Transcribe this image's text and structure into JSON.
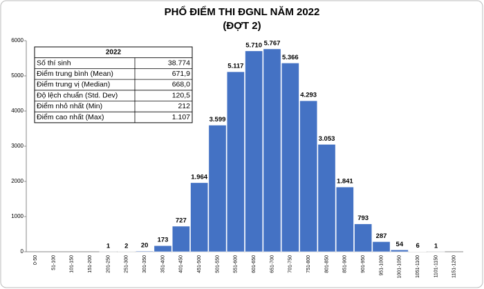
{
  "chart_data": {
    "type": "bar",
    "title": "PHỔ ĐIỂM THI ĐGNL NĂM 2022",
    "subtitle": "(ĐỢT 2)",
    "categories": [
      "0-50",
      "51-100",
      "101-150",
      "151-200",
      "201-250",
      "251-300",
      "301-350",
      "351-400",
      "401-450",
      "451-500",
      "501-550",
      "551-600",
      "601-650",
      "651-700",
      "701-750",
      "751-800",
      "801-850",
      "851-900",
      "901-950",
      "951-1000",
      "1001-1050",
      "1051-1100",
      "1101-1150",
      "1151-1200"
    ],
    "values": [
      0,
      0,
      0,
      0,
      1,
      2,
      20,
      173,
      727,
      1964,
      3599,
      5117,
      5710,
      5767,
      5366,
      4293,
      3053,
      1841,
      793,
      287,
      54,
      6,
      1,
      0
    ],
    "value_labels": [
      null,
      null,
      null,
      null,
      "1",
      "2",
      "20",
      "173",
      "727",
      "1.964",
      "3.599",
      "5.117",
      "5.710",
      "5.767",
      "5.366",
      "4.293",
      "3.053",
      "1.841",
      "793",
      "287",
      "54",
      "6",
      "1",
      null
    ],
    "color": "#4472c4",
    "ylim": [
      0,
      6000
    ],
    "yticks": [
      0,
      1000,
      2000,
      3000,
      4000,
      5000,
      6000
    ],
    "grid": false,
    "stats_table": {
      "title": "2022",
      "rows": [
        [
          "Số thí sinh",
          "38.774"
        ],
        [
          "Điểm trung bình (Mean)",
          "671,9"
        ],
        [
          "Điểm trung vị (Median)",
          "668,0"
        ],
        [
          "Độ lệch chuẩn (Std. Dev)",
          "120,5"
        ],
        [
          "Điểm nhỏ nhất (Min)",
          "212"
        ],
        [
          "Điểm cao nhất (Max)",
          "1.107"
        ]
      ]
    }
  }
}
